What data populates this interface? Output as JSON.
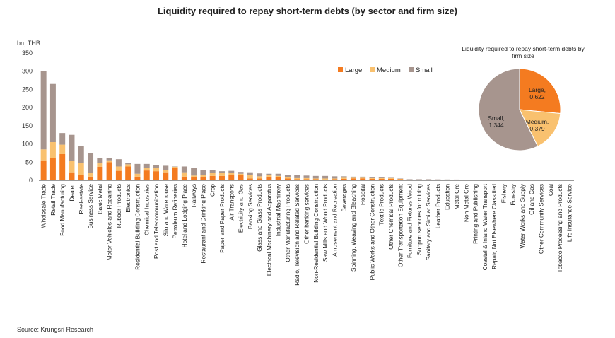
{
  "title": "Liquidity required to repay short-term debts (by sector and firm size)",
  "unit": "bn, THB",
  "source": "Source: Krungsri Research",
  "colors": {
    "Large": "#f47b20",
    "Medium": "#f9c16f",
    "Small": "#a7958e"
  },
  "chart_data": [
    {
      "type": "bar",
      "stacked": true,
      "ylim": [
        0,
        350
      ],
      "yticks": [
        0,
        50,
        100,
        150,
        200,
        250,
        300,
        350
      ],
      "legend": "top-right",
      "grid": false,
      "categories": [
        "Wholesale Trade",
        "Retail Trade",
        "Food Manufacturing",
        "Dealer",
        "Real-estate",
        "Business Service",
        "Basic Metal",
        "Motor Vehicles and Repairing",
        "Rubber Products",
        "Electronics",
        "Residential Building Construction",
        "Chemical Industries",
        "Post and Telecommunication",
        "Silo and Warehouse",
        "Petroleum Refineries",
        "Hotel and Lodging Place",
        "Railways",
        "Restaurant and Drinking Place",
        "Crop",
        "Paper and Paper Products",
        "Air Transports",
        "Electricity and Gas",
        "Banking Services",
        "Glass and Glass Products",
        "Electrical Machinery and Apparatus",
        "Industrial Machinery",
        "Other Manufacturing Products",
        "Radio, Television and Related Services",
        "Other banking services",
        "Non-Residential Building Construction",
        "Saw Mills and Wood Products",
        "Amusement and Recreation",
        "Beverages",
        "Spinning, Weaving and Bleaching",
        "Hospital",
        "Public Works and Other Construction",
        "Textile Products",
        "Other Chemical Products",
        "Other Transportation Equipment",
        "Furniture and Fixtures Wood",
        "Support services for mining",
        "Sanitary and Similar Services",
        "Leather Products",
        "Education",
        "Metal Ore",
        "Non Metal Ore",
        "Printing and Publishing",
        "Coastal & Inland Water Transport",
        "Repair, Not Elsewhere Classified",
        "Fishery",
        "Forestry",
        "Water Works and Supply",
        "Oil and Gas",
        "Other Community Services",
        "Coal",
        "Tobacco Processing and Products",
        "Life Insurance Service"
      ],
      "series": [
        {
          "name": "Large",
          "values": [
            55,
            62,
            72,
            22,
            15,
            10,
            37,
            50,
            26,
            38,
            10,
            27,
            25,
            22,
            35,
            10,
            8,
            8,
            12,
            12,
            15,
            14,
            5,
            5,
            10,
            8,
            5,
            3,
            3,
            3,
            2,
            3,
            4,
            5,
            5,
            4,
            4,
            4,
            3,
            1,
            1,
            1,
            1,
            1,
            1,
            0.5,
            0.5,
            0.5,
            0.3,
            0.3,
            0.2,
            0.2,
            0.2,
            0.1,
            0.1,
            0.1,
            0.1
          ]
        },
        {
          "name": "Medium",
          "values": [
            30,
            43,
            26,
            32,
            32,
            10,
            10,
            5,
            12,
            6,
            8,
            8,
            8,
            6,
            2,
            12,
            5,
            6,
            8,
            8,
            6,
            4,
            10,
            6,
            4,
            4,
            3,
            3,
            3,
            2,
            3,
            2,
            3,
            2,
            2,
            2,
            2,
            2,
            1,
            1,
            1,
            1,
            0.5,
            0.5,
            0.5,
            0.5,
            0.5,
            0.5,
            0.3,
            0.3,
            0.2,
            0.2,
            0.2,
            0.1,
            0.1,
            0.1,
            0.1
          ]
        },
        {
          "name": "Small",
          "values": [
            215,
            160,
            32,
            71,
            48,
            54,
            14,
            7,
            20,
            3,
            27,
            10,
            8,
            12,
            1,
            16,
            21,
            15,
            8,
            5,
            5,
            5,
            7,
            8,
            4,
            6,
            6,
            8,
            7,
            7,
            7,
            6,
            4,
            3,
            3,
            3,
            3,
            1,
            1,
            1,
            1,
            1,
            1,
            0.8,
            0.6,
            0.6,
            0.4,
            0.3,
            0.3,
            0.2,
            0.2,
            0.2,
            0.1,
            0.1,
            0.1,
            0.1,
            0.1
          ]
        }
      ]
    },
    {
      "type": "pie",
      "title": "Liquidity required to repay short-term debts by firm size",
      "slices": [
        {
          "name": "Large",
          "label": "Large,\n0.622",
          "value": 0.622
        },
        {
          "name": "Medium",
          "label": "Medium,\n0.379",
          "value": 0.379
        },
        {
          "name": "Small",
          "label": "Small,\n1.344",
          "value": 1.344
        }
      ]
    }
  ]
}
